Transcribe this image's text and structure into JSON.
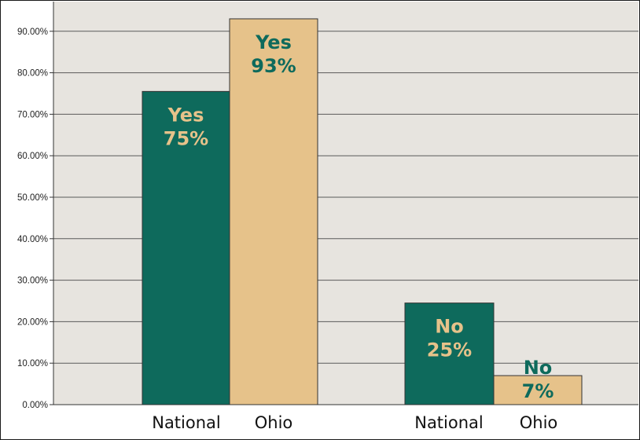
{
  "colors": {
    "plot_background": "#e7e4df",
    "gridline": "#5a5a5a",
    "national": "#0e6a5c",
    "ohio": "#e6c28a",
    "bar_outline": "#333333"
  },
  "chart_data": {
    "type": "bar",
    "ylim": [
      0,
      0.95
    ],
    "yticks": [
      {
        "value": 0.0,
        "label": "0.00%"
      },
      {
        "value": 0.1,
        "label": "10.00%"
      },
      {
        "value": 0.2,
        "label": "20.00%"
      },
      {
        "value": 0.3,
        "label": "30.00%"
      },
      {
        "value": 0.4,
        "label": "40.00%"
      },
      {
        "value": 0.5,
        "label": "50.00%"
      },
      {
        "value": 0.6,
        "label": "60.00%"
      },
      {
        "value": 0.7,
        "label": "70.00%"
      },
      {
        "value": 0.8,
        "label": "80.00%"
      },
      {
        "value": 0.9,
        "label": "90.00%"
      }
    ],
    "grid": true,
    "bars": [
      {
        "category": "National",
        "value": 0.755,
        "label_line1": "Yes",
        "label_line2": "75%",
        "fill": "#0e6a5c",
        "label_color1": "#e6c28a",
        "label_color2": "#e6c28a",
        "label_position": "inside"
      },
      {
        "category": "Ohio",
        "value": 0.93,
        "label_line1": "Yes",
        "label_line2": "93%",
        "fill": "#e6c28a",
        "label_color1": "#0e6a5c",
        "label_color2": "#0e6a5c",
        "label_position": "inside"
      },
      {
        "category": "National",
        "value": 0.245,
        "label_line1": "No",
        "label_line2": "25%",
        "fill": "#0e6a5c",
        "label_color1": "#e6c28a",
        "label_color2": "#e6c28a",
        "label_position": "inside"
      },
      {
        "category": "Ohio",
        "value": 0.07,
        "label_line1": "No",
        "label_line2": "7%",
        "fill": "#e6c28a",
        "label_color1": "#0e6a5c",
        "label_color2": "#0e6a5c",
        "label_position": "straddle"
      }
    ]
  }
}
